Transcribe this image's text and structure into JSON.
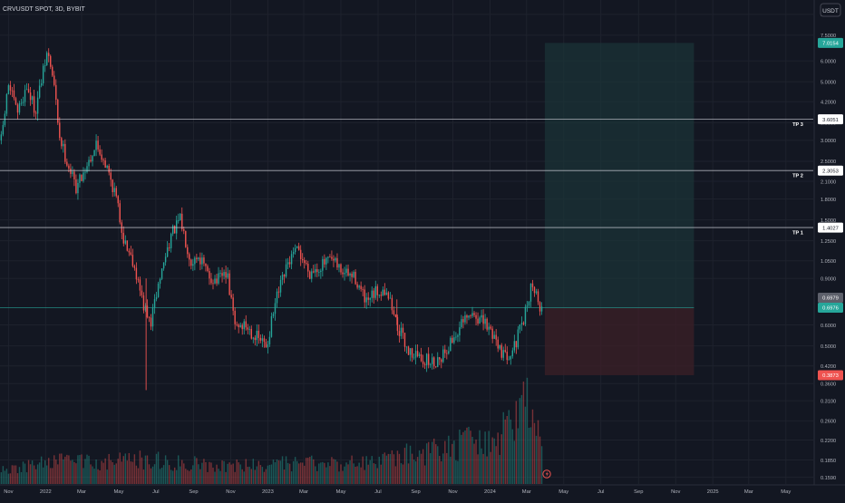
{
  "header": {
    "title": "CRVUSDT SPOT, 3D, BYBIT",
    "currency": "USDT"
  },
  "colors": {
    "background": "#131722",
    "grid": "#1e222d",
    "axis_text": "#b2b5be",
    "up": "#26a69a",
    "down": "#ef5350",
    "profit_zone": "#1b3537",
    "loss_zone": "#3a1f27",
    "level_line": "#d1d4dc"
  },
  "price_axis": {
    "ticks": [
      "9.0000",
      "7.5000",
      "6.0000",
      "5.0000",
      "4.2000",
      "3.5000",
      "3.0000",
      "2.5000",
      "2.1000",
      "1.8000",
      "1.5000",
      "1.2500",
      "1.0500",
      "0.9000",
      "0.6000",
      "0.5000",
      "0.4200",
      "0.3600",
      "0.3100",
      "0.2600",
      "0.2200",
      "0.1850",
      "0.1590"
    ]
  },
  "time_axis": {
    "ticks": [
      "Nov",
      "2022",
      "Mar",
      "May",
      "Jul",
      "Sep",
      "Nov",
      "2023",
      "Mar",
      "May",
      "Jul",
      "Sep",
      "Nov",
      "2024",
      "Mar",
      "May",
      "Jul",
      "Sep",
      "Nov",
      "2025",
      "Mar",
      "May"
    ]
  },
  "levels": [
    {
      "name": "TP 3",
      "value": "3.6051"
    },
    {
      "name": "TP 2",
      "value": "2.3053"
    },
    {
      "name": "TP 1",
      "value": "1.4027"
    }
  ],
  "badges": {
    "target": "7.0154",
    "current_a": "0.6979",
    "current_b": "0.6976",
    "stop": "0.3873"
  },
  "chart_data": {
    "type": "candlestick",
    "symbol": "CRVUSDT",
    "interval": "3D",
    "exchange": "BYBIT",
    "y_scale": "log",
    "ylim": [
      0.15,
      10.2
    ],
    "x_range": [
      "2021-10-18",
      "2025-06-15"
    ],
    "path_points": [
      [
        "2021-10-20",
        3.0
      ],
      [
        "2021-11-01",
        4.9
      ],
      [
        "2021-11-15",
        3.8
      ],
      [
        "2021-12-01",
        4.8
      ],
      [
        "2021-12-15",
        3.9
      ],
      [
        "2022-01-04",
        6.5
      ],
      [
        "2022-01-14",
        5.0
      ],
      [
        "2022-01-24",
        3.1
      ],
      [
        "2022-02-05",
        2.5
      ],
      [
        "2022-02-20",
        2.0
      ],
      [
        "2022-03-05",
        2.3
      ],
      [
        "2022-03-25",
        2.9
      ],
      [
        "2022-04-08",
        2.5
      ],
      [
        "2022-04-25",
        1.9
      ],
      [
        "2022-05-10",
        1.25
      ],
      [
        "2022-05-25",
        1.05
      ],
      [
        "2022-06-10",
        0.72
      ],
      [
        "2022-06-22",
        0.6
      ],
      [
        "2022-07-05",
        0.85
      ],
      [
        "2022-07-25",
        1.3
      ],
      [
        "2022-08-10",
        1.5
      ],
      [
        "2022-08-28",
        1.05
      ],
      [
        "2022-09-10",
        1.1
      ],
      [
        "2022-09-25",
        0.92
      ],
      [
        "2022-10-10",
        0.88
      ],
      [
        "2022-10-25",
        0.95
      ],
      [
        "2022-11-08",
        0.6
      ],
      [
        "2022-11-25",
        0.6
      ],
      [
        "2022-12-10",
        0.55
      ],
      [
        "2022-12-30",
        0.5
      ],
      [
        "2023-01-15",
        0.75
      ],
      [
        "2023-02-05",
        1.05
      ],
      [
        "2023-02-20",
        1.15
      ],
      [
        "2023-03-10",
        0.95
      ],
      [
        "2023-03-25",
        1.0
      ],
      [
        "2023-04-15",
        1.05
      ],
      [
        "2023-05-05",
        0.95
      ],
      [
        "2023-05-25",
        0.9
      ],
      [
        "2023-06-12",
        0.72
      ],
      [
        "2023-06-28",
        0.8
      ],
      [
        "2023-07-15",
        0.82
      ],
      [
        "2023-08-01",
        0.6
      ],
      [
        "2023-08-20",
        0.48
      ],
      [
        "2023-09-10",
        0.45
      ],
      [
        "2023-09-30",
        0.43
      ],
      [
        "2023-10-20",
        0.48
      ],
      [
        "2023-11-15",
        0.6
      ],
      [
        "2023-12-05",
        0.66
      ],
      [
        "2023-12-25",
        0.6
      ],
      [
        "2024-01-10",
        0.54
      ],
      [
        "2024-01-25",
        0.45
      ],
      [
        "2024-02-10",
        0.5
      ],
      [
        "2024-02-25",
        0.62
      ],
      [
        "2024-03-10",
        0.88
      ],
      [
        "2024-03-20",
        0.72
      ],
      [
        "2024-03-28",
        0.7
      ]
    ],
    "volume_profile": [
      [
        "2021-10-20",
        0.12
      ],
      [
        "2022-01-05",
        0.22
      ],
      [
        "2022-06-15",
        0.25
      ],
      [
        "2022-11-10",
        0.18
      ],
      [
        "2023-01-15",
        0.2
      ],
      [
        "2023-06-15",
        0.22
      ],
      [
        "2023-08-15",
        0.3
      ],
      [
        "2023-11-15",
        0.42
      ],
      [
        "2024-01-10",
        0.55
      ],
      [
        "2024-02-20",
        0.7
      ],
      [
        "2024-03-05",
        1.0
      ],
      [
        "2024-03-15",
        0.65
      ],
      [
        "2024-03-28",
        0.3
      ]
    ],
    "position": {
      "start": "2024-03-31",
      "end": "2024-12-01",
      "entry": 0.6976,
      "take_profit": 7.0154,
      "stop_loss": 0.3873
    }
  }
}
